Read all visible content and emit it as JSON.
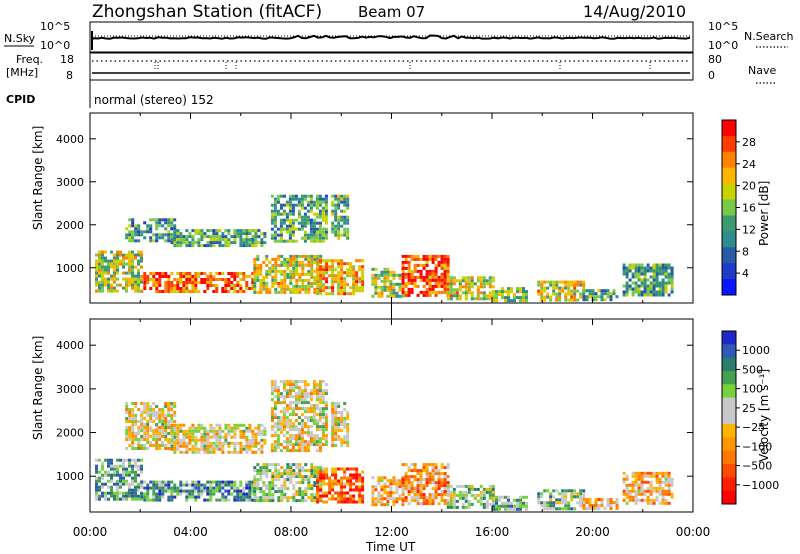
{
  "header": {
    "station": "Zhongshan Station (fitACF)",
    "beam": "Beam 07",
    "date": "14/Aug/2010"
  },
  "sky_panel": {
    "left_label": "N.Sky",
    "right_label": "N.Search",
    "left_ticks": [
      "10^5",
      "10^0"
    ],
    "right_ticks": [
      "10^5",
      "10^0"
    ]
  },
  "freq_panel": {
    "left_label_1": "Freq.",
    "left_label_2": "[MHz]",
    "left_ticks": [
      "18",
      "8"
    ],
    "right_label": "Nave",
    "right_ticks": [
      "80",
      "0"
    ]
  },
  "cpid_panel": {
    "label": "CPID",
    "mode_text": "normal (stereo) 152"
  },
  "power_colorbar": {
    "label": "Power [dB]",
    "ticks": [
      "28",
      "24",
      "20",
      "16",
      "12",
      "8",
      "4"
    ],
    "colors": [
      "#ff0000",
      "#ff3c00",
      "#ff8200",
      "#ffb400",
      "#c8d200",
      "#78c84a",
      "#3c9b6e",
      "#2d8c8c",
      "#285aa5",
      "#1e3cc8",
      "#0a14ff"
    ]
  },
  "velocity_colorbar": {
    "label": "Velocity [m s⁻¹]",
    "ticks": [
      "1000",
      "500",
      "100",
      "25",
      "−25",
      "−100",
      "−500",
      "−1000"
    ],
    "colors": [
      "#1e28c8",
      "#2d5ab4",
      "#2d7d6e",
      "#46a050",
      "#78d23c",
      "#c8c8c8",
      "#c8c8c8",
      "#ffb400",
      "#ff9600",
      "#ff7800",
      "#ff4b00",
      "#ff1e00",
      "#ff0000"
    ]
  },
  "chart_data": {
    "type": "heatmap",
    "xlabel": "Time UT",
    "ylabel": "Slant Range [km]",
    "xticks": [
      "00:00",
      "04:00",
      "08:00",
      "12:00",
      "16:00",
      "20:00",
      "00:00"
    ],
    "yticks": [
      "1000",
      "2000",
      "3000",
      "4000"
    ],
    "xlim": [
      0,
      24
    ],
    "ylim": [
      180,
      4600
    ],
    "panels": [
      {
        "name": "Power",
        "blobs": [
          {
            "t0": 0.2,
            "t1": 2.0,
            "r0": 450,
            "r1": 1400,
            "level": 0.55
          },
          {
            "t0": 2.0,
            "t1": 6.5,
            "r0": 420,
            "r1": 900,
            "level": 0.8
          },
          {
            "t0": 6.5,
            "t1": 9.2,
            "r0": 450,
            "r1": 1300,
            "level": 0.6
          },
          {
            "t0": 1.4,
            "t1": 3.4,
            "r0": 1650,
            "r1": 2150,
            "level": 0.35
          },
          {
            "t0": 3.2,
            "t1": 7.0,
            "r0": 1550,
            "r1": 1900,
            "level": 0.4
          },
          {
            "t0": 7.2,
            "t1": 9.4,
            "r0": 1600,
            "r1": 2700,
            "level": 0.4
          },
          {
            "t0": 9.6,
            "t1": 10.3,
            "r0": 1700,
            "r1": 2700,
            "level": 0.45
          },
          {
            "t0": 9.0,
            "t1": 10.8,
            "r0": 400,
            "r1": 1200,
            "level": 0.7
          },
          {
            "t0": 11.2,
            "t1": 12.4,
            "r0": 350,
            "r1": 1000,
            "level": 0.55
          },
          {
            "t0": 12.4,
            "t1": 14.2,
            "r0": 350,
            "r1": 1300,
            "level": 0.85
          },
          {
            "t0": 14.2,
            "t1": 16.0,
            "r0": 300,
            "r1": 800,
            "level": 0.6
          },
          {
            "t0": 16.0,
            "t1": 17.4,
            "r0": 250,
            "r1": 550,
            "level": 0.5
          },
          {
            "t0": 17.8,
            "t1": 19.6,
            "r0": 250,
            "r1": 700,
            "level": 0.6
          },
          {
            "t0": 19.6,
            "t1": 21.0,
            "r0": 250,
            "r1": 500,
            "level": 0.45
          },
          {
            "t0": 21.2,
            "t1": 23.2,
            "r0": 400,
            "r1": 1100,
            "level": 0.4
          }
        ]
      },
      {
        "name": "Velocity",
        "blobs": [
          {
            "t0": 0.2,
            "t1": 2.0,
            "r0": 450,
            "r1": 1400,
            "level": 0.7
          },
          {
            "t0": 2.0,
            "t1": 6.5,
            "r0": 420,
            "r1": 900,
            "level": 0.75
          },
          {
            "t0": 6.5,
            "t1": 9.2,
            "r0": 450,
            "r1": 1300,
            "level": 0.6
          },
          {
            "t0": 1.4,
            "t1": 3.4,
            "r0": 1650,
            "r1": 2700,
            "level": 0.5
          },
          {
            "t0": 3.2,
            "t1": 7.0,
            "r0": 1550,
            "r1": 2200,
            "level": 0.5
          },
          {
            "t0": 7.2,
            "t1": 9.4,
            "r0": 1600,
            "r1": 3200,
            "level": 0.5
          },
          {
            "t0": 9.6,
            "t1": 10.3,
            "r0": 1700,
            "r1": 2700,
            "level": 0.5
          },
          {
            "t0": 9.0,
            "t1": 10.8,
            "r0": 400,
            "r1": 1200,
            "level": 0.25
          },
          {
            "t0": 11.2,
            "t1": 12.4,
            "r0": 350,
            "r1": 1000,
            "level": 0.4
          },
          {
            "t0": 12.4,
            "t1": 14.2,
            "r0": 350,
            "r1": 1300,
            "level": 0.35
          },
          {
            "t0": 14.2,
            "t1": 16.0,
            "r0": 300,
            "r1": 800,
            "level": 0.6
          },
          {
            "t0": 16.0,
            "t1": 17.4,
            "r0": 250,
            "r1": 550,
            "level": 0.7
          },
          {
            "t0": 17.8,
            "t1": 19.6,
            "r0": 250,
            "r1": 700,
            "level": 0.65
          },
          {
            "t0": 19.6,
            "t1": 21.0,
            "r0": 250,
            "r1": 500,
            "level": 0.4
          },
          {
            "t0": 21.2,
            "t1": 23.2,
            "r0": 400,
            "r1": 1100,
            "level": 0.4
          }
        ]
      }
    ]
  }
}
